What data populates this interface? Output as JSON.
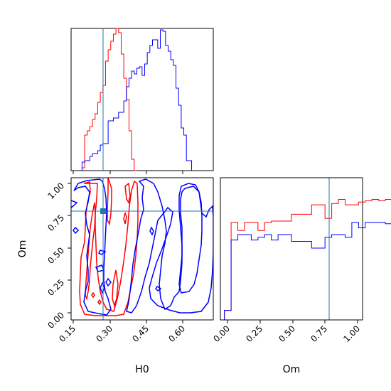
{
  "chart_data": {
    "type": "corner",
    "parameters": [
      "H0",
      "Om"
    ],
    "truth": {
      "H0": 0.27,
      "Om": 0.78,
      "color": "#1f77b4"
    },
    "series_colors": [
      "#ff0000",
      "#0000ff"
    ],
    "panels": [
      {
        "id": "hist-H0",
        "type": "step-histogram",
        "xlim": [
          0.145,
          0.69
        ],
        "ylim": [
          0,
          1
        ],
        "bin_start": 0.187,
        "bin_width": 0.01,
        "series": [
          {
            "color": "#ff0000",
            "values": [
              0.02,
              0.25,
              0.28,
              0.31,
              0.36,
              0.4,
              0.48,
              0.55,
              0.6,
              0.77,
              0.85,
              0.91,
              0.96,
              1.0,
              0.97,
              0.82,
              0.65,
              0.5,
              0.28,
              0.08,
              0
            ]
          },
          {
            "color": "#0000ff",
            "values": [
              0.06,
              0.07,
              0.07,
              0.1,
              0.12,
              0.12,
              0.14,
              0.18,
              0.19,
              0.19,
              0.35,
              0.35,
              0.37,
              0.37,
              0.41,
              0.41,
              0.49,
              0.59,
              0.65,
              0.7,
              0.68,
              0.72,
              0.73,
              0.67,
              0.75,
              0.83,
              0.88,
              0.92,
              0.92,
              0.86,
              0.99,
              0.98,
              0.88,
              0.84,
              0.78,
              0.74,
              0.58,
              0.46,
              0.3,
              0.25,
              0.07,
              0.07
            ]
          }
        ]
      },
      {
        "id": "contour-H0-Om",
        "type": "contour",
        "xlim": [
          0.145,
          0.69
        ],
        "ylim": [
          -0.04,
          1.05
        ],
        "xlabel": "H0",
        "ylabel": "Om",
        "xticks": [
          "0.15",
          "0.30",
          "0.45",
          "0.60"
        ],
        "yticks": [
          "0.00",
          "0.25",
          "0.50",
          "0.75",
          "1.00"
        ]
      },
      {
        "id": "hist-Om",
        "type": "step-histogram",
        "xlim": [
          -0.03,
          1.03
        ],
        "ylim": [
          0,
          1.05
        ],
        "xlabel": "Om",
        "xticks": [
          "0.00",
          "0.25",
          "0.50",
          "0.75",
          "1.00"
        ],
        "bin_start": 0.0,
        "bin_width": 0.05,
        "series": [
          {
            "color": "#ff0000",
            "values": [
              0.07,
              0.72,
              0.66,
              0.72,
              0.72,
              0.66,
              0.72,
              0.73,
              0.73,
              0.73,
              0.78,
              0.78,
              0.78,
              0.85,
              0.85,
              0.75,
              0.86,
              0.89,
              0.85,
              0.85,
              0.87,
              0.88,
              0.89,
              0.88,
              0.89,
              0.86,
              0.91,
              0.85,
              0.92,
              0.93
            ]
          },
          {
            "color": "#0000ff",
            "values": [
              0.07,
              0.59,
              0.63,
              0.63,
              0.59,
              0.61,
              0.63,
              0.59,
              0.63,
              0.63,
              0.58,
              0.58,
              0.58,
              0.53,
              0.53,
              0.61,
              0.63,
              0.63,
              0.61,
              0.72,
              0.68,
              0.72,
              0.72,
              0.72,
              0.71,
              0.7,
              0.62,
              0.62,
              0.6,
              0.24
            ]
          }
        ]
      }
    ]
  }
}
